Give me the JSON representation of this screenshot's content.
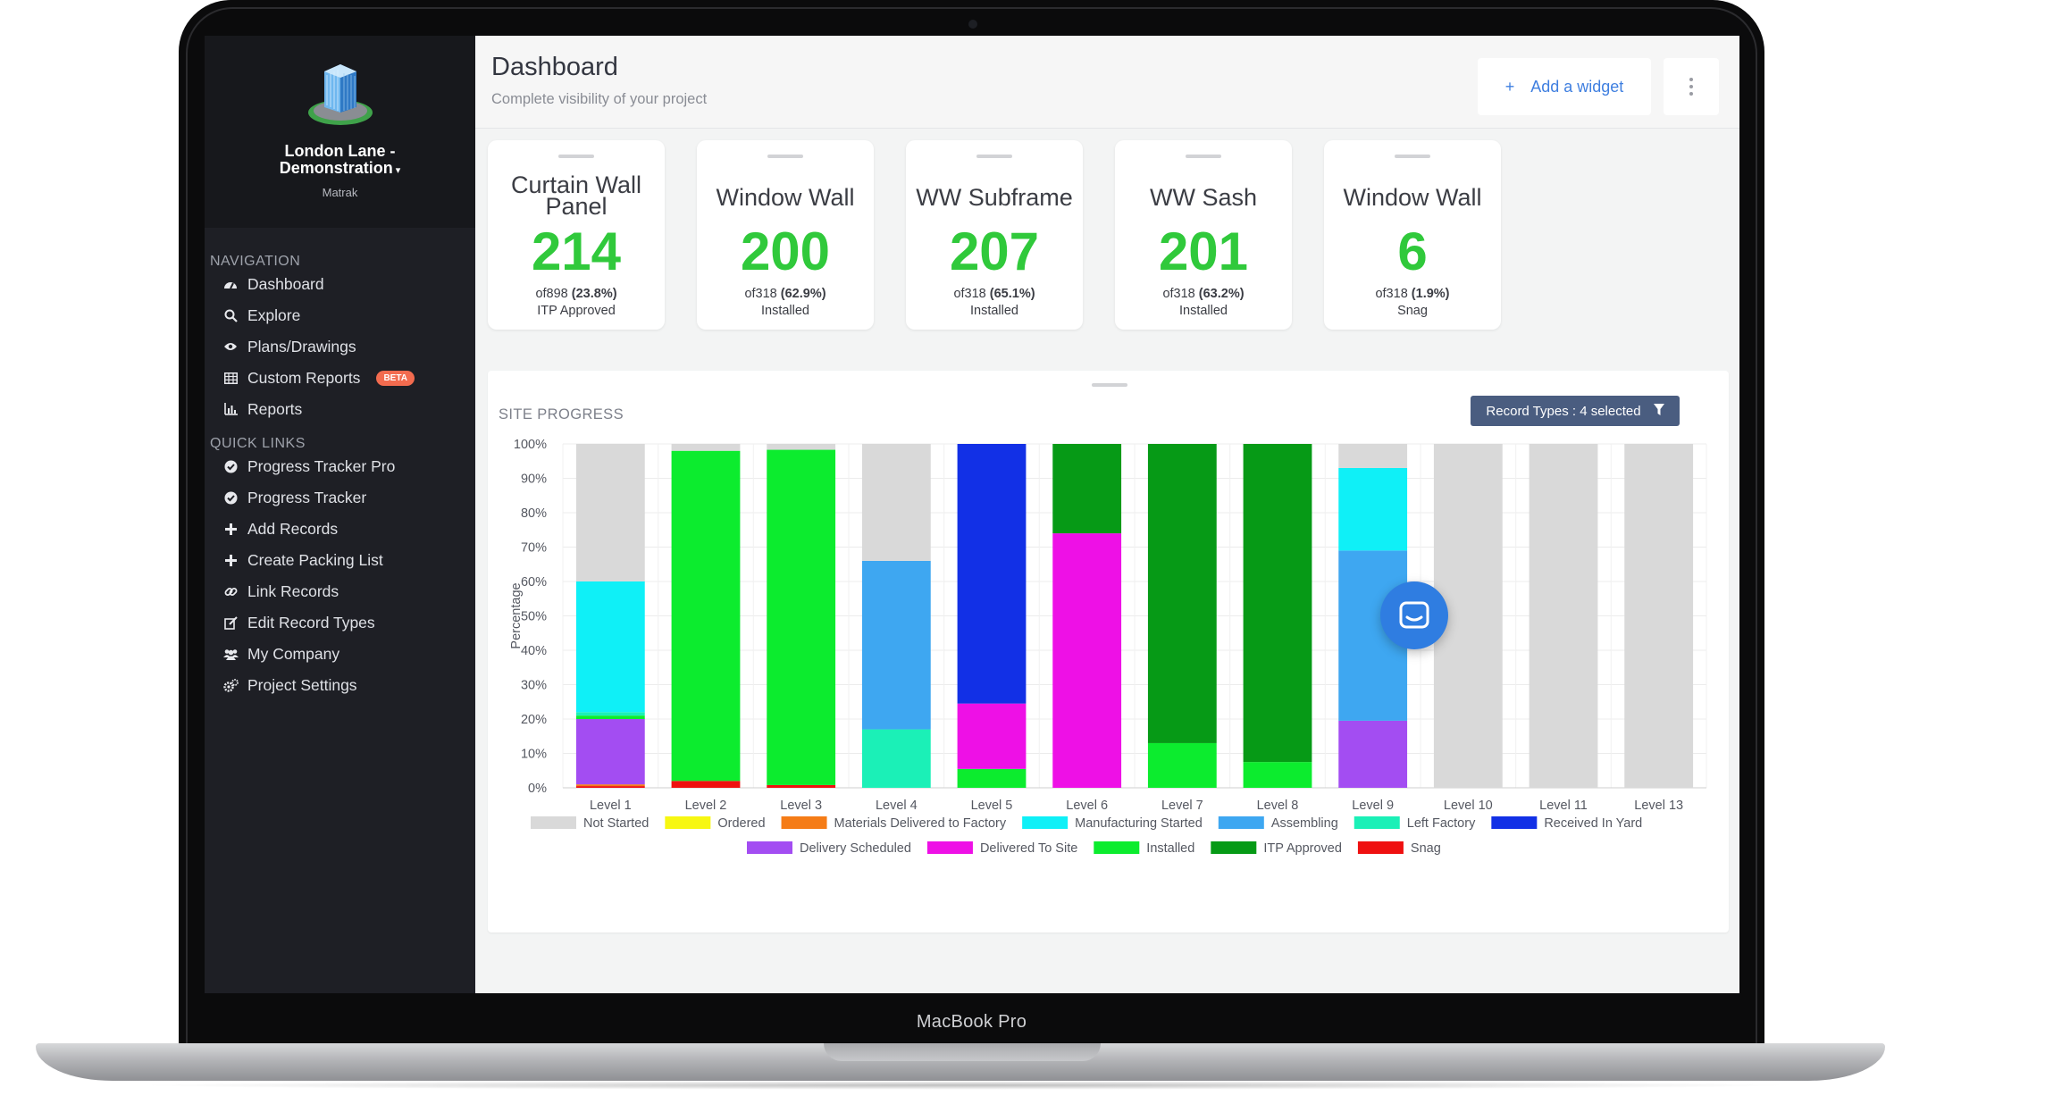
{
  "device": {
    "label": "MacBook Pro"
  },
  "sidebar": {
    "project_name_line1": "London Lane -",
    "project_name_line2": "Demonstration",
    "company": "Matrak",
    "navigation_heading": "NAVIGATION",
    "quick_links_heading": "QUICK LINKS",
    "navigation": [
      {
        "label": "Dashboard",
        "icon": "dashboard-icon"
      },
      {
        "label": "Explore",
        "icon": "search-icon"
      },
      {
        "label": "Plans/Drawings",
        "icon": "eye-icon"
      },
      {
        "label": "Custom Reports",
        "icon": "table-icon",
        "badge": "BETA"
      },
      {
        "label": "Reports",
        "icon": "bar-chart-icon"
      }
    ],
    "quick_links": [
      {
        "label": "Progress Tracker Pro",
        "icon": "check-circle-icon"
      },
      {
        "label": "Progress Tracker",
        "icon": "check-circle-icon"
      },
      {
        "label": "Add Records",
        "icon": "plus-icon"
      },
      {
        "label": "Create Packing List",
        "icon": "plus-icon"
      },
      {
        "label": "Link Records",
        "icon": "link-icon"
      },
      {
        "label": "Edit Record Types",
        "icon": "edit-icon"
      },
      {
        "label": "My Company",
        "icon": "users-icon"
      },
      {
        "label": "Project Settings",
        "icon": "cogs-icon"
      }
    ]
  },
  "header": {
    "title": "Dashboard",
    "subtitle": "Complete visibility of your project",
    "add_widget_label": "Add a widget"
  },
  "cards": [
    {
      "title": "Curtain Wall Panel",
      "value": "214",
      "of": "of898",
      "pct": "(23.8%)",
      "status": "ITP Approved"
    },
    {
      "title": "Window Wall",
      "value": "200",
      "of": "of318",
      "pct": "(62.9%)",
      "status": "Installed"
    },
    {
      "title": "WW Subframe",
      "value": "207",
      "of": "of318",
      "pct": "(65.1%)",
      "status": "Installed"
    },
    {
      "title": "WW Sash",
      "value": "201",
      "of": "of318",
      "pct": "(63.2%)",
      "status": "Installed"
    },
    {
      "title": "Window Wall",
      "value": "6",
      "of": "of318",
      "pct": "(1.9%)",
      "status": "Snag"
    }
  ],
  "panel": {
    "title": "SITE PROGRESS",
    "filter_label": "Record Types : 4 selected"
  },
  "colors": {
    "accent": "#3f7fe0",
    "big_number": "#30c93b",
    "sidebar_bg": "#1e1f25",
    "filter_bg": "#4a5d80",
    "beta_badge": "#f26b4f"
  },
  "chart_data": {
    "type": "bar",
    "stacked": true,
    "ylabel": "Percentage",
    "ylim": [
      0,
      100
    ],
    "yticks": [
      "0%",
      "10%",
      "20%",
      "30%",
      "40%",
      "50%",
      "60%",
      "70%",
      "80%",
      "90%",
      "100%"
    ],
    "categories": [
      "Level 1",
      "Level 2",
      "Level 3",
      "Level 4",
      "Level 5",
      "Level 6",
      "Level 7",
      "Level 8",
      "Level 9",
      "Level 10",
      "Level 11",
      "Level 13"
    ],
    "series": [
      {
        "name": "Snag",
        "color": "#ef1010",
        "values": [
          0.5,
          2,
          0.8,
          0,
          0,
          0,
          0,
          0,
          0,
          0,
          0,
          0
        ]
      },
      {
        "name": "Materials Delivered to Factory",
        "color": "#f57c17",
        "values": [
          0.5,
          0,
          0,
          0,
          0,
          0,
          0,
          0,
          0,
          0,
          0,
          0
        ]
      },
      {
        "name": "Delivery Scheduled",
        "color": "#a34df2",
        "values": [
          19,
          0,
          0,
          0,
          0,
          0,
          0,
          0,
          19.5,
          0,
          0,
          0
        ]
      },
      {
        "name": "Installed",
        "color": "#0cec2e",
        "values": [
          1,
          96,
          97.5,
          0,
          5.5,
          0,
          13,
          7.5,
          0,
          0,
          0,
          0
        ]
      },
      {
        "name": "Left Factory",
        "color": "#1bf0b7",
        "values": [
          1,
          0,
          0,
          17,
          0,
          0,
          0,
          0,
          0,
          0,
          0,
          0
        ]
      },
      {
        "name": "Delivered To Site",
        "color": "#ee10e6",
        "values": [
          0,
          0,
          0,
          0,
          19,
          74,
          0,
          0,
          0,
          0,
          0,
          0
        ]
      },
      {
        "name": "ITP Approved",
        "color": "#069a16",
        "values": [
          0,
          0,
          0,
          0,
          0,
          26,
          87,
          92.5,
          0,
          0,
          0,
          0
        ]
      },
      {
        "name": "Received In Yard",
        "color": "#1230e6",
        "values": [
          0,
          0,
          0,
          0,
          75.5,
          0,
          0,
          0,
          0,
          0,
          0,
          0
        ]
      },
      {
        "name": "Assembling",
        "color": "#3ea7f1",
        "values": [
          0,
          0,
          0,
          49,
          0,
          0,
          0,
          0,
          49.5,
          0,
          0,
          0
        ]
      },
      {
        "name": "Manufacturing Started",
        "color": "#0ff0f7",
        "values": [
          38,
          0,
          0,
          0,
          0,
          0,
          0,
          0,
          24,
          0,
          0,
          0
        ]
      },
      {
        "name": "Ordered",
        "color": "#f7f712",
        "values": [
          0,
          0,
          0,
          0,
          0,
          0,
          0,
          0,
          0,
          0,
          0,
          0
        ]
      },
      {
        "name": "Not Started",
        "color": "#d9d9d9",
        "values": [
          40,
          2,
          1.7,
          34,
          0,
          0,
          0,
          0,
          7,
          100,
          100,
          100
        ]
      }
    ],
    "legend": [
      [
        "Not Started",
        "Ordered",
        "Materials Delivered to Factory",
        "Manufacturing Started",
        "Assembling",
        "Left Factory",
        "Received In Yard"
      ],
      [
        "Delivery Scheduled",
        "Delivered To Site",
        "Installed",
        "ITP Approved",
        "Snag"
      ]
    ],
    "legend_placement": "bottom",
    "grid": true
  }
}
